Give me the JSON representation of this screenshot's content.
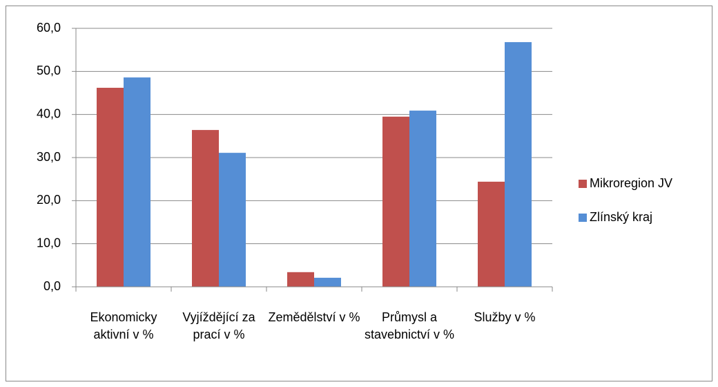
{
  "chart_data": {
    "type": "bar",
    "categories": [
      "Ekonomicky aktivní v %",
      "Vyjíždějící za prací v %",
      "Zemědělství v %",
      "Průmysl a stavebnictví v %",
      "Služby v %"
    ],
    "series": [
      {
        "name": "Mikroregion JV",
        "color": "#c0504d",
        "values": [
          46.2,
          36.4,
          3.4,
          39.5,
          24.4
        ]
      },
      {
        "name": "Zlínský kraj",
        "color": "#558ed5",
        "values": [
          48.6,
          31.1,
          2.1,
          40.9,
          56.8
        ]
      }
    ],
    "ylim": [
      0,
      60
    ],
    "yticks": [
      {
        "value": 0,
        "label": "0,0"
      },
      {
        "value": 10,
        "label": "10,0"
      },
      {
        "value": 20,
        "label": "20,0"
      },
      {
        "value": 30,
        "label": "30,0"
      },
      {
        "value": 40,
        "label": "40,0"
      },
      {
        "value": 50,
        "label": "50,0"
      },
      {
        "value": 60,
        "label": "60,0"
      }
    ],
    "grid": true,
    "legend": "right"
  }
}
